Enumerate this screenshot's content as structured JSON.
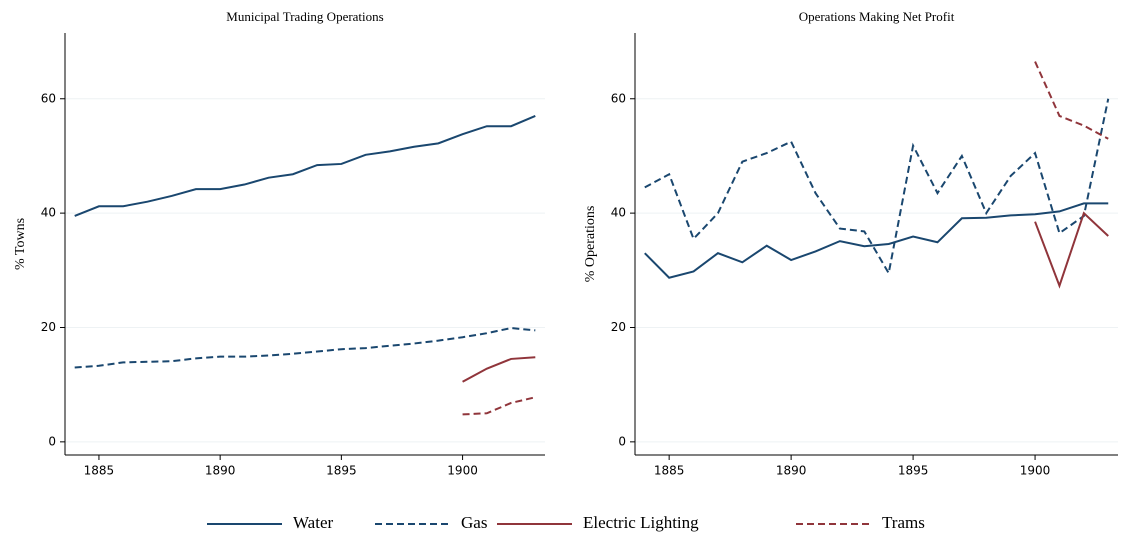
{
  "chart_data": [
    {
      "type": "line",
      "title": "Municipal Trading Operations",
      "y_label": "% Towns",
      "x": [
        1884,
        1885,
        1886,
        1887,
        1888,
        1889,
        1890,
        1891,
        1892,
        1893,
        1894,
        1895,
        1896,
        1897,
        1898,
        1899,
        1900,
        1901,
        1902,
        1903
      ],
      "series": [
        {
          "name": "Water",
          "color": "#1a476f",
          "style": "solid",
          "values": [
            39.5,
            41.2,
            41.2,
            42,
            43,
            44.2,
            44.2,
            45,
            46.2,
            46.8,
            48.4,
            48.6,
            50.2,
            50.8,
            51.6,
            52.2,
            53.8,
            55.2,
            55.2,
            57
          ]
        },
        {
          "name": "Gas",
          "color": "#1a476f",
          "style": "dashed",
          "values": [
            13,
            13.3,
            13.9,
            14,
            14.1,
            14.6,
            14.9,
            14.9,
            15.1,
            15.4,
            15.8,
            16.2,
            16.4,
            16.8,
            17.2,
            17.7,
            18.3,
            19,
            19.9,
            19.5
          ]
        },
        {
          "name": "Electric Lighting",
          "color": "#90353b",
          "style": "solid",
          "values": [
            null,
            null,
            null,
            null,
            null,
            null,
            null,
            null,
            null,
            null,
            null,
            null,
            null,
            null,
            null,
            null,
            10.5,
            12.8,
            14.5,
            14.8
          ]
        },
        {
          "name": "Trams",
          "color": "#90353b",
          "style": "dashed",
          "values": [
            null,
            null,
            null,
            null,
            null,
            null,
            null,
            null,
            null,
            null,
            null,
            null,
            null,
            null,
            null,
            null,
            4.8,
            5,
            6.8,
            7.8
          ]
        }
      ],
      "xlim": [
        1883.6,
        1903.4
      ],
      "xticks": [
        1885,
        1890,
        1895,
        1900
      ],
      "ylim": [
        -2.3,
        71.5
      ],
      "yticks": [
        0,
        20,
        40,
        60
      ],
      "grid": true
    },
    {
      "type": "line",
      "title": "Operations Making Net Profit",
      "y_label": "% Operations",
      "x": [
        1884,
        1885,
        1886,
        1887,
        1888,
        1889,
        1890,
        1891,
        1892,
        1893,
        1894,
        1895,
        1896,
        1897,
        1898,
        1899,
        1900,
        1901,
        1902,
        1903
      ],
      "series": [
        {
          "name": "Water",
          "color": "#1a476f",
          "style": "solid",
          "values": [
            33,
            28.7,
            29.8,
            33,
            31.4,
            34.3,
            31.8,
            33.3,
            35.1,
            34.2,
            34.6,
            35.9,
            34.9,
            39.1,
            39.2,
            39.6,
            39.8,
            40.3,
            41.7,
            41.7
          ]
        },
        {
          "name": "Gas",
          "color": "#1a476f",
          "style": "dashed",
          "values": [
            44.5,
            46.8,
            35.5,
            40,
            49,
            50.5,
            52.5,
            43.5,
            37.3,
            36.8,
            29.5,
            51.8,
            43.5,
            50,
            40,
            46.5,
            50.5,
            36.5,
            39.5,
            60
          ]
        },
        {
          "name": "Electric Lighting",
          "color": "#90353b",
          "style": "solid",
          "values": [
            null,
            null,
            null,
            null,
            null,
            null,
            null,
            null,
            null,
            null,
            null,
            null,
            null,
            null,
            null,
            null,
            38.5,
            27.3,
            40,
            36
          ]
        },
        {
          "name": "Trams",
          "color": "#90353b",
          "style": "dashed",
          "values": [
            null,
            null,
            null,
            null,
            null,
            null,
            null,
            null,
            null,
            null,
            null,
            null,
            null,
            null,
            null,
            null,
            66.5,
            57,
            55.3,
            53
          ]
        }
      ],
      "xlim": [
        1883.6,
        1903.4
      ],
      "xticks": [
        1885,
        1890,
        1895,
        1900
      ],
      "ylim": [
        -2.3,
        71.5
      ],
      "yticks": [
        0,
        20,
        40,
        60
      ],
      "grid": true
    }
  ]
}
